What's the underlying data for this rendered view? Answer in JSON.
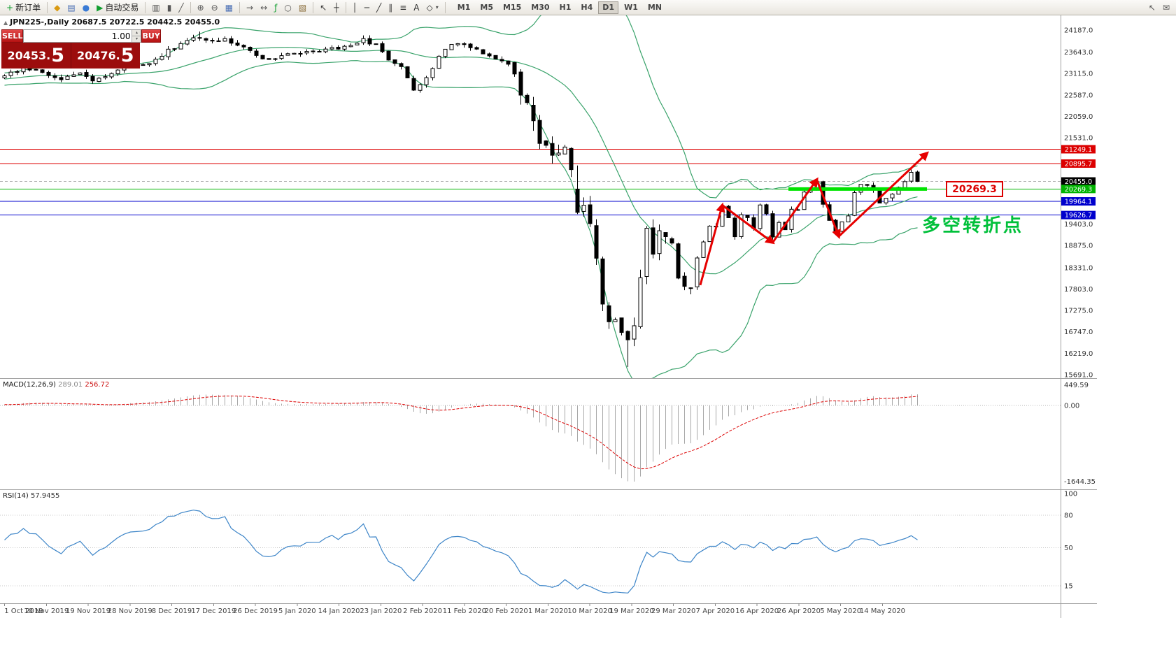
{
  "window": {
    "title_line": "JPN225-,Daily 20687.5 20722.5 20442.5 20455.0",
    "symbol_marker": "▲"
  },
  "toolbar": {
    "items": [
      {
        "name": "new-order-button",
        "glyph": "+",
        "glyph_color": "#0f9d2e",
        "label": "新订单"
      },
      {
        "sep": true
      },
      {
        "name": "metaeditor-button",
        "glyph": "◆",
        "glyph_color": "#d99a12"
      },
      {
        "name": "market-watch-button",
        "glyph": "▤",
        "glyph_color": "#4a6fb5"
      },
      {
        "name": "navigator-button",
        "glyph": "●",
        "glyph_color": "#3a7bd5"
      },
      {
        "name": "auto-trading-button",
        "glyph": "▶",
        "glyph_color": "#0f9d2e",
        "label": "自动交易"
      },
      {
        "sep": true
      },
      {
        "name": "bar-chart-button",
        "glyph": "▥",
        "glyph_color": "#555555"
      },
      {
        "name": "candlestick-chart-button",
        "glyph": "▮",
        "glyph_color": "#555555"
      },
      {
        "name": "line-chart-button",
        "glyph": "╱",
        "glyph_color": "#555555"
      },
      {
        "sep": true
      },
      {
        "name": "zoom-in-button",
        "glyph": "⊕",
        "glyph_color": "#555555"
      },
      {
        "name": "zoom-out-button",
        "glyph": "⊖",
        "glyph_color": "#555555"
      },
      {
        "name": "tile-windows-button",
        "glyph": "▦",
        "glyph_color": "#4a6fb5"
      },
      {
        "sep": true
      },
      {
        "name": "auto-scroll-button",
        "glyph": "→",
        "glyph_color": "#555555"
      },
      {
        "name": "chart-shift-button",
        "glyph": "↔",
        "glyph_color": "#555555"
      },
      {
        "name": "indicators-button",
        "glyph": "ƒ",
        "glyph_color": "#0f9d2e"
      },
      {
        "name": "periods-button",
        "glyph": "○",
        "glyph_color": "#555555"
      },
      {
        "name": "templates-button",
        "glyph": "▧",
        "glyph_color": "#8a6d3b"
      },
      {
        "sep": true
      },
      {
        "name": "cursor-button",
        "glyph": "↖",
        "glyph_color": "#333333"
      },
      {
        "name": "crosshair-button",
        "glyph": "┼",
        "glyph_color": "#333333"
      },
      {
        "sep": true
      },
      {
        "name": "vertical-line-button",
        "glyph": "│",
        "glyph_color": "#333333"
      },
      {
        "name": "horizontal-line-button",
        "glyph": "─",
        "glyph_color": "#333333"
      },
      {
        "name": "trendline-button",
        "glyph": "╱",
        "glyph_color": "#333333"
      },
      {
        "name": "channel-button",
        "glyph": "∥",
        "glyph_color": "#333333"
      },
      {
        "name": "fibonacci-button",
        "glyph": "≡",
        "glyph_color": "#333333"
      },
      {
        "name": "text-label-button",
        "glyph": "A",
        "glyph_color": "#333333"
      },
      {
        "name": "arrows-dropdown-button",
        "glyph": "◇",
        "glyph_color": "#333333",
        "caret": true
      },
      {
        "sep": true
      }
    ],
    "timeframes": {
      "options": [
        "M1",
        "M5",
        "M15",
        "M30",
        "H1",
        "H4",
        "D1",
        "W1",
        "MN"
      ],
      "active": "D1"
    },
    "right_items": [
      {
        "name": "pointer-tool-button",
        "glyph": "↖",
        "glyph_color": "#555555"
      },
      {
        "name": "message-button",
        "glyph": "✉",
        "glyph_color": "#555555"
      }
    ]
  },
  "trade_panel": {
    "sell_label": "SELL",
    "buy_label": "BUY",
    "volume": "1.00",
    "spinner_up": "▴",
    "spinner_down": "▾",
    "sell_price": "20453.",
    "sell_price_big": "5",
    "buy_price": "20476.",
    "buy_price_big": "5"
  },
  "chart_data": {
    "type": "candlestick",
    "symbol": "JPN225-",
    "timeframe": "Daily",
    "ohlc_current": {
      "open": 20687.5,
      "high": 20722.5,
      "low": 20442.5,
      "close": 20455.0
    },
    "y_axis_ticks": [
      "24187.0",
      "23643.0",
      "23115.0",
      "22587.0",
      "22059.0",
      "21531.0",
      "19403.0",
      "18875.0",
      "18331.0",
      "17803.0",
      "17275.0",
      "16747.0",
      "16219.0",
      "15691.0"
    ],
    "x_axis_dates": [
      "1 Oct 2019",
      "10 Nov 2019",
      "19 Nov 2019",
      "28 Nov 2019",
      "8 Dec 2019",
      "17 Dec 2019",
      "26 Dec 2019",
      "5 Jan 2020",
      "14 Jan 2020",
      "23 Jan 2020",
      "2 Feb 2020",
      "11 Feb 2020",
      "20 Feb 2020",
      "1 Mar 2020",
      "10 Mar 2020",
      "19 Mar 2020",
      "29 Mar 2020",
      "7 Apr 2020",
      "16 Apr 2020",
      "26 Apr 2020",
      "5 May 2020",
      "14 May 2020"
    ],
    "price_anchors": [
      [
        0,
        23050
      ],
      [
        3,
        23250
      ],
      [
        6,
        23150
      ],
      [
        9,
        22980
      ],
      [
        12,
        23120
      ],
      [
        14,
        22900
      ],
      [
        17,
        23150
      ],
      [
        20,
        23280
      ],
      [
        23,
        23350
      ],
      [
        26,
        23680
      ],
      [
        29,
        23900
      ],
      [
        31,
        24020
      ],
      [
        33,
        23880
      ],
      [
        35,
        23950
      ],
      [
        37,
        23820
      ],
      [
        40,
        23560
      ],
      [
        42,
        23430
      ],
      [
        45,
        23570
      ],
      [
        48,
        23650
      ],
      [
        51,
        23690
      ],
      [
        54,
        23780
      ],
      [
        57,
        23940
      ],
      [
        59,
        23820
      ],
      [
        61,
        23480
      ],
      [
        63,
        23320
      ],
      [
        65,
        22720
      ],
      [
        66,
        22850
      ],
      [
        67,
        23050
      ],
      [
        68,
        23270
      ],
      [
        69,
        23560
      ],
      [
        71,
        23870
      ],
      [
        73,
        23810
      ],
      [
        75,
        23690
      ],
      [
        77,
        23540
      ],
      [
        79,
        23400
      ],
      [
        80,
        23380
      ],
      [
        81,
        23100
      ],
      [
        82,
        22600
      ],
      [
        83,
        22400
      ],
      [
        84,
        21950
      ],
      [
        85,
        21400
      ],
      [
        86,
        21350
      ],
      [
        87,
        21100
      ],
      [
        88,
        21150
      ],
      [
        89,
        21300
      ],
      [
        90,
        20750
      ],
      [
        91,
        19700
      ],
      [
        92,
        19870
      ],
      [
        93,
        19420
      ],
      [
        94,
        18560
      ],
      [
        95,
        17430
      ],
      [
        96,
        17000
      ],
      [
        97,
        17050
      ],
      [
        98,
        16730
      ],
      [
        99,
        16550
      ],
      [
        100,
        16890
      ],
      [
        101,
        18090
      ],
      [
        102,
        19300
      ],
      [
        103,
        18660
      ],
      [
        104,
        19250
      ],
      [
        105,
        19080
      ],
      [
        106,
        18920
      ],
      [
        107,
        18060
      ],
      [
        108,
        17880
      ],
      [
        109,
        17820
      ],
      [
        110,
        18580
      ],
      [
        111,
        18950
      ],
      [
        112,
        19350
      ],
      [
        113,
        19350
      ],
      [
        114,
        19850
      ],
      [
        115,
        19550
      ],
      [
        116,
        19100
      ],
      [
        117,
        19640
      ],
      [
        118,
        19550
      ],
      [
        119,
        19290
      ],
      [
        120,
        19880
      ],
      [
        121,
        19670
      ],
      [
        122,
        19080
      ],
      [
        123,
        19430
      ],
      [
        124,
        19260
      ],
      [
        125,
        19780
      ],
      [
        126,
        19770
      ],
      [
        127,
        20190
      ],
      [
        128,
        20250
      ],
      [
        129,
        20450
      ],
      [
        130,
        19900
      ],
      [
        131,
        19500
      ],
      [
        132,
        19220
      ],
      [
        133,
        19450
      ],
      [
        134,
        19600
      ],
      [
        135,
        20180
      ],
      [
        136,
        20390
      ],
      [
        137,
        20370
      ],
      [
        138,
        20270
      ],
      [
        139,
        19910
      ],
      [
        140,
        20040
      ],
      [
        141,
        20130
      ],
      [
        142,
        20300
      ],
      [
        143,
        20450
      ],
      [
        144,
        20680
      ],
      [
        145,
        20455
      ]
    ],
    "bollinger": {
      "period": 20,
      "deviation": 2
    },
    "levels": {
      "resistance": [
        {
          "price": 21249.1,
          "label": "21249.1"
        },
        {
          "price": 20895.7,
          "label": "20895.7"
        }
      ],
      "support_blue": [
        {
          "price": 19964.1,
          "label": "19964.1"
        },
        {
          "price": 19626.7,
          "label": "19626.7"
        }
      ],
      "green_line": {
        "price": 20269.3,
        "label": "20269.3"
      },
      "current": {
        "price": 20455.0,
        "label": "20455.0"
      },
      "green_segment": {
        "price": 20269.3,
        "from_index": 124.5,
        "to_index": 146.5
      }
    },
    "trend_arrows": [
      [
        [
          110.5,
          17900
        ],
        [
          114,
          19870
        ]
      ],
      [
        [
          114,
          19870
        ],
        [
          122,
          18950
        ]
      ],
      [
        [
          122,
          18950
        ],
        [
          129,
          20500
        ]
      ],
      [
        [
          129,
          20500
        ],
        [
          132.5,
          19100
        ]
      ],
      [
        [
          132.5,
          19100
        ],
        [
          146.5,
          21150
        ]
      ]
    ],
    "callout": {
      "text": "20269.3"
    },
    "annotation": {
      "text": "多空转折点"
    }
  },
  "macd": {
    "name": "MACD(12,26,9)",
    "value_main": "289.01",
    "value_signal": "256.72",
    "params": {
      "fast": 12,
      "slow": 26,
      "signal": 9
    },
    "ticks": [
      {
        "v": 449.59,
        "label": "449.59"
      },
      {
        "v": 0,
        "label": "0.00"
      },
      {
        "v": -1644.35,
        "label": "-1644.35"
      }
    ]
  },
  "rsi": {
    "name": "RSI(14)",
    "value": "57.9455",
    "period": 14,
    "levels": [
      {
        "v": 100,
        "label": "100"
      },
      {
        "v": 80,
        "label": "80"
      },
      {
        "v": 50,
        "label": "50"
      },
      {
        "v": 15,
        "label": "15"
      }
    ]
  },
  "colors": {
    "bull_candle": "#ffffff",
    "bear_candle": "#000000",
    "wick": "#000000",
    "bollinger": "#3aa36b",
    "resistance_line": "#dc0000",
    "support_line": "#0000cd",
    "green_level_line": "#00b400",
    "green_segment": "#00e400",
    "current_price_line": "#b0b0b0",
    "current_price_label_bg": "#000000",
    "macd_histogram": "#a8a8a8",
    "macd_signal": "#dc0000",
    "rsi_line": "#3d85c8",
    "trend_arrow": "#e60000",
    "annotation_green": "#00c03a",
    "callout_red": "#dc0000"
  }
}
